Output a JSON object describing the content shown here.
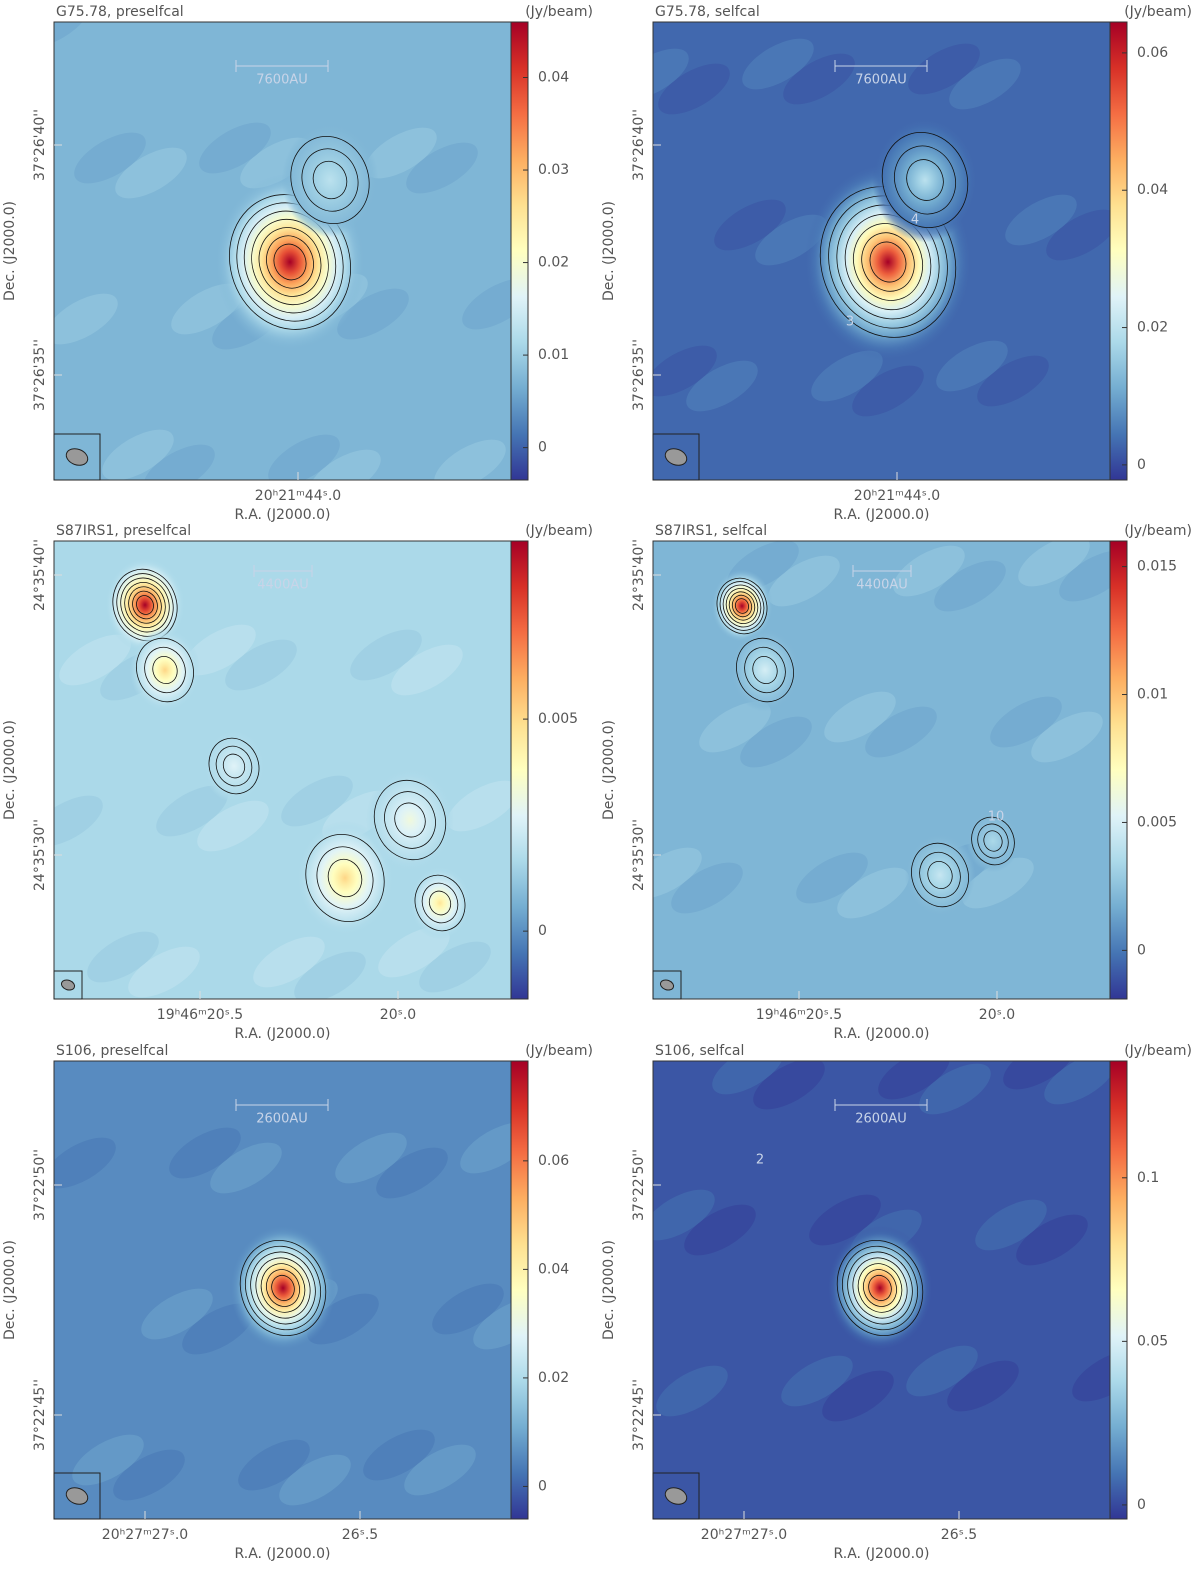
{
  "panels": [
    {
      "title": "G75.78, preselfcal",
      "unit": "(Jy/beam)",
      "scale_bar": "7600AU",
      "x_label": "R.A. (J2000.0)",
      "y_label": "Dec. (J2000.0)",
      "ra_ticks": [
        "20ʰ21ᵐ44ˢ.0"
      ],
      "dec_ticks": [
        "37°26'40''",
        "37°26'35''"
      ],
      "colorbar": {
        "lim": [
          -0.0035,
          0.046
        ],
        "ticks": [
          0,
          0.01,
          0.02,
          0.03,
          0.04
        ]
      },
      "contour_labels": []
    },
    {
      "title": "G75.78, selfcal",
      "unit": "(Jy/beam)",
      "scale_bar": "7600AU",
      "x_label": "R.A. (J2000.0)",
      "y_label": "Dec. (J2000.0)",
      "ra_ticks": [
        "20ʰ21ᵐ44ˢ.0"
      ],
      "dec_ticks": [
        "37°26'40''",
        "37°26'35''"
      ],
      "colorbar": {
        "lim": [
          -0.0022,
          0.0645
        ],
        "ticks": [
          0,
          0.02,
          0.04,
          0.06
        ]
      },
      "contour_labels": [
        "4",
        "3"
      ]
    },
    {
      "title": "S87IRS1, preselfcal",
      "unit": "(Jy/beam)",
      "scale_bar": "4400AU",
      "x_label": "R.A. (J2000.0)",
      "y_label": "Dec. (J2000.0)",
      "ra_ticks": [
        "19ʰ46ᵐ20ˢ.5",
        "20ˢ.0"
      ],
      "dec_ticks": [
        "24°35'40''",
        "24°35'30''"
      ],
      "colorbar": {
        "lim": [
          -0.0016,
          0.0092
        ],
        "ticks": [
          0,
          0.005
        ]
      },
      "contour_labels": []
    },
    {
      "title": "S87IRS1, selfcal",
      "unit": "(Jy/beam)",
      "scale_bar": "4400AU",
      "x_label": "R.A. (J2000.0)",
      "y_label": "Dec. (J2000.0)",
      "ra_ticks": [
        "19ʰ46ᵐ20ˢ.5",
        "20ˢ.0"
      ],
      "dec_ticks": [
        "24°35'40''",
        "24°35'30''"
      ],
      "colorbar": {
        "lim": [
          -0.0019,
          0.016
        ],
        "ticks": [
          0,
          0.005,
          0.01,
          0.015
        ]
      },
      "contour_labels": [
        "10"
      ]
    },
    {
      "title": "S106, preselfcal",
      "unit": "(Jy/beam)",
      "scale_bar": "2600AU",
      "x_label": "R.A. (J2000.0)",
      "y_label": "Dec. (J2000.0)",
      "ra_ticks": [
        "20ʰ27ᵐ27ˢ.0",
        "26ˢ.5"
      ],
      "dec_ticks": [
        "37°22'50''",
        "37°22'45''"
      ],
      "colorbar": {
        "lim": [
          -0.006,
          0.0784
        ],
        "ticks": [
          0,
          0.02,
          0.04,
          0.06
        ]
      },
      "contour_labels": []
    },
    {
      "title": "S106, selfcal",
      "unit": "(Jy/beam)",
      "scale_bar": "2600AU",
      "x_label": "R.A. (J2000.0)",
      "y_label": "Dec. (J2000.0)",
      "ra_ticks": [
        "20ʰ27ᵐ27ˢ.0",
        "26ˢ.5"
      ],
      "dec_ticks": [
        "37°22'50''",
        "37°22'45''"
      ],
      "colorbar": {
        "lim": [
          -0.0043,
          0.1357
        ],
        "ticks": [
          0,
          0.05,
          0.1
        ]
      },
      "contour_labels": [
        "2"
      ]
    }
  ]
}
